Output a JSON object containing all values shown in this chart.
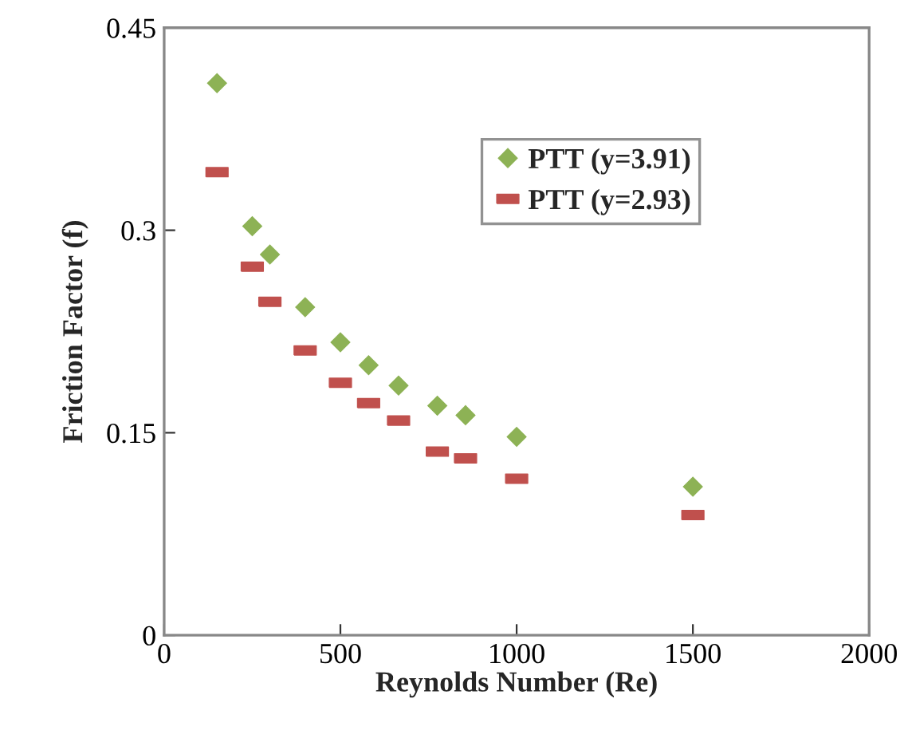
{
  "chart_data": {
    "type": "scatter",
    "xlabel": "Reynolds Number (Re)",
    "ylabel": "Friction Factor (f)",
    "xlim": [
      0,
      2000
    ],
    "xticks": [
      0,
      500,
      1000,
      1500,
      2000
    ],
    "ylim": [
      0,
      0.45
    ],
    "yticks": [
      0,
      0.15,
      0.3,
      0.45
    ],
    "x": [
      150,
      250,
      300,
      400,
      500,
      580,
      665,
      775,
      855,
      1000,
      1500
    ],
    "series": [
      {
        "name": "PTT (y=3.91)",
        "color": "#8db255",
        "marker": "diamond",
        "values": [
          0.409,
          0.303,
          0.282,
          0.243,
          0.217,
          0.2,
          0.185,
          0.17,
          0.163,
          0.147,
          0.11
        ]
      },
      {
        "name": "PTT (y=2.93)",
        "color": "#c0504d",
        "values": [
          0.343,
          0.273,
          0.247,
          0.211,
          0.187,
          0.172,
          0.159,
          0.136,
          0.131,
          0.116,
          0.089
        ]
      }
    ],
    "grid": false,
    "legend": "top right"
  }
}
